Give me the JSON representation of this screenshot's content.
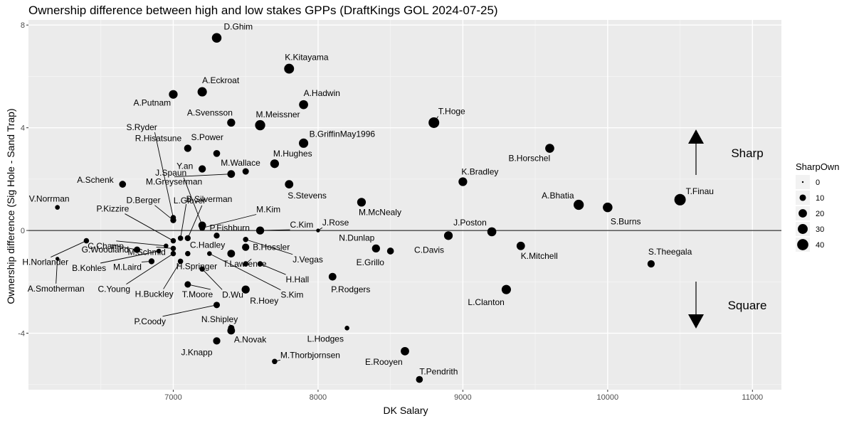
{
  "chart_data": {
    "type": "scatter",
    "title": "Ownership difference between high and low stakes GPPs (DraftKings GOL 2024-07-25)",
    "xlabel": "DK Salary",
    "ylabel": "Ownership difference (Sig Hole - Sand Trap)",
    "xlim": [
      6000,
      11200
    ],
    "ylim": [
      -6.2,
      8.2
    ],
    "x_ticks": [
      7000,
      8000,
      9000,
      10000,
      11000
    ],
    "y_ticks": [
      -4,
      0,
      4,
      8
    ],
    "grid": true,
    "hline": 0,
    "legend": {
      "title": "SharpOwn",
      "position": "right",
      "sizes": [
        0,
        10,
        20,
        30,
        40
      ]
    },
    "annotations": {
      "sharp": "Sharp",
      "square": "Square"
    },
    "points": [
      {
        "name": "D.Ghim",
        "x": 7300,
        "y": 7.5,
        "size": 28
      },
      {
        "name": "K.Kitayama",
        "x": 7800,
        "y": 6.3,
        "size": 30
      },
      {
        "name": "A.Eckroat",
        "x": 7200,
        "y": 5.4,
        "size": 26
      },
      {
        "name": "A.Putnam",
        "x": 7000,
        "y": 5.3,
        "size": 22
      },
      {
        "name": "A.Hadwin",
        "x": 7900,
        "y": 4.9,
        "size": 24
      },
      {
        "name": "A.Svensson",
        "x": 7400,
        "y": 4.2,
        "size": 18
      },
      {
        "name": "M.Meissner",
        "x": 7600,
        "y": 4.1,
        "size": 32
      },
      {
        "name": "T.Hoge",
        "x": 8800,
        "y": 4.2,
        "size": 36
      },
      {
        "name": "B.GriffinMay1996",
        "x": 7900,
        "y": 3.4,
        "size": 26
      },
      {
        "name": "R.Hisatsune",
        "x": 7100,
        "y": 3.2,
        "size": 14
      },
      {
        "name": "S.Power",
        "x": 7300,
        "y": 3.0,
        "size": 12
      },
      {
        "name": "B.Horschel",
        "x": 9600,
        "y": 3.2,
        "size": 24
      },
      {
        "name": "Y.an",
        "x": 7200,
        "y": 2.4,
        "size": 14
      },
      {
        "name": "M.Wallace",
        "x": 7500,
        "y": 2.3,
        "size": 10
      },
      {
        "name": "M.Hughes",
        "x": 7700,
        "y": 2.6,
        "size": 22
      },
      {
        "name": "S.Ryder",
        "x": 7000,
        "y": 0.5,
        "size": 6
      },
      {
        "name": "M.Greyserman",
        "x": 7400,
        "y": 2.2,
        "size": 16
      },
      {
        "name": "J.Spaun",
        "x": 7200,
        "y": 0.2,
        "size": 16
      },
      {
        "name": "A.Schenk",
        "x": 6650,
        "y": 1.8,
        "size": 12
      },
      {
        "name": "K.Bradley",
        "x": 9000,
        "y": 1.9,
        "size": 22
      },
      {
        "name": "B.Silverman",
        "x": 7050,
        "y": -0.3,
        "size": 6
      },
      {
        "name": "S.Stevens",
        "x": 7800,
        "y": 1.8,
        "size": 20
      },
      {
        "name": "V.Norrman",
        "x": 6200,
        "y": 0.9,
        "size": 4
      },
      {
        "name": "D.Berger",
        "x": 7000,
        "y": 0.4,
        "size": 8
      },
      {
        "name": "A.Bhatia",
        "x": 9800,
        "y": 1.0,
        "size": 32
      },
      {
        "name": "T.Finau",
        "x": 10500,
        "y": 1.2,
        "size": 42
      },
      {
        "name": "S.Burns",
        "x": 10000,
        "y": 0.9,
        "size": 28
      },
      {
        "name": "M.McNealy",
        "x": 8300,
        "y": 1.1,
        "size": 22
      },
      {
        "name": "P.Kizzire",
        "x": 7000,
        "y": -0.4,
        "size": 6
      },
      {
        "name": "L.Glover",
        "x": 7100,
        "y": -0.3,
        "size": 8
      },
      {
        "name": "M.Kim",
        "x": 7200,
        "y": 0.1,
        "size": 8
      },
      {
        "name": "C.Kim",
        "x": 7600,
        "y": 0.0,
        "size": 18
      },
      {
        "name": "J.Rose",
        "x": 8000,
        "y": 0.0,
        "size": 2
      },
      {
        "name": "J.Poston",
        "x": 9200,
        "y": -0.05,
        "size": 24
      },
      {
        "name": "C.Champ",
        "x": 6950,
        "y": -0.6,
        "size": 4
      },
      {
        "name": "M.Schmid",
        "x": 7000,
        "y": -0.7,
        "size": 6
      },
      {
        "name": "P.Fishburn",
        "x": 7300,
        "y": -0.2,
        "size": 8
      },
      {
        "name": "N.Dunlap",
        "x": 8400,
        "y": -0.7,
        "size": 18
      },
      {
        "name": "C.Davis",
        "x": 8900,
        "y": -0.2,
        "size": 22
      },
      {
        "name": "H.Norlander",
        "x": 6400,
        "y": -0.4,
        "size": 6
      },
      {
        "name": "G.Woodland",
        "x": 6750,
        "y": -0.75,
        "size": 10
      },
      {
        "name": "C.Hadley",
        "x": 7400,
        "y": -0.9,
        "size": 16
      },
      {
        "name": "B.Hossler",
        "x": 7500,
        "y": -0.65,
        "size": 14
      },
      {
        "name": "E.Grillo",
        "x": 8500,
        "y": -0.8,
        "size": 12
      },
      {
        "name": "K.Mitchell",
        "x": 9400,
        "y": -0.6,
        "size": 20
      },
      {
        "name": "S.Theegala",
        "x": 10300,
        "y": -1.3,
        "size": 14
      },
      {
        "name": "B.Kohles",
        "x": 6900,
        "y": -0.8,
        "size": 4
      },
      {
        "name": "M.Laird",
        "x": 6850,
        "y": -1.2,
        "size": 8
      },
      {
        "name": "H.Springer",
        "x": 7100,
        "y": -0.9,
        "size": 6
      },
      {
        "name": "T.Lawrence",
        "x": 7500,
        "y": -1.3,
        "size": 6
      },
      {
        "name": "J.Vegas",
        "x": 7500,
        "y": -0.35,
        "size": 6
      },
      {
        "name": "H.Hall",
        "x": 7600,
        "y": -1.3,
        "size": 6
      },
      {
        "name": "A.Smotherman",
        "x": 6200,
        "y": -1.1,
        "size": 2
      },
      {
        "name": "C.Young",
        "x": 7000,
        "y": -0.9,
        "size": 6
      },
      {
        "name": "H.Buckley",
        "x": 7050,
        "y": -1.2,
        "size": 6
      },
      {
        "name": "D.Wu",
        "x": 7200,
        "y": -1.5,
        "size": 6
      },
      {
        "name": "S.Kim",
        "x": 7250,
        "y": -0.9,
        "size": 4
      },
      {
        "name": "P.Rodgers",
        "x": 8100,
        "y": -1.8,
        "size": 16
      },
      {
        "name": "L.Clanton",
        "x": 9300,
        "y": -2.3,
        "size": 26
      },
      {
        "name": "T.Moore",
        "x": 7100,
        "y": -2.1,
        "size": 10
      },
      {
        "name": "R.Hoey",
        "x": 7500,
        "y": -2.3,
        "size": 18
      },
      {
        "name": "P.Coody",
        "x": 7300,
        "y": -2.9,
        "size": 10
      },
      {
        "name": "N.Shipley",
        "x": 7400,
        "y": -3.9,
        "size": 16
      },
      {
        "name": "J.Knapp",
        "x": 7300,
        "y": -4.3,
        "size": 14
      },
      {
        "name": "A.Novak",
        "x": 7400,
        "y": -3.8,
        "size": 10
      },
      {
        "name": "L.Hodges",
        "x": 8200,
        "y": -3.8,
        "size": 4
      },
      {
        "name": "M.Thorbjornsen",
        "x": 7700,
        "y": -5.1,
        "size": 6
      },
      {
        "name": "E.Rooyen",
        "x": 8600,
        "y": -4.7,
        "size": 20
      },
      {
        "name": "T.Pendrith",
        "x": 8700,
        "y": -5.8,
        "size": 12
      }
    ]
  }
}
